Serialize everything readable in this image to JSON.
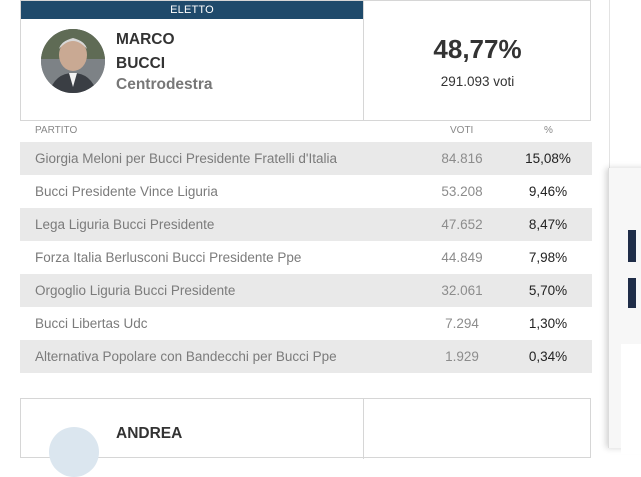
{
  "winner": {
    "badge": "ELETTO",
    "first_name": "MARCO",
    "last_name": "BUCCI",
    "coalition": "Centrodestra",
    "percentage": "48,77%",
    "votes": "291.093 voti"
  },
  "table": {
    "headers": {
      "party": "PARTITO",
      "votes": "VOTI",
      "pct": "%"
    },
    "rows": [
      {
        "party": "Giorgia Meloni per Bucci Presidente Fratelli d'Italia",
        "votes": "84.816",
        "pct": "15,08%"
      },
      {
        "party": "Bucci Presidente Vince Liguria",
        "votes": "53.208",
        "pct": "9,46%"
      },
      {
        "party": "Lega Liguria Bucci Presidente",
        "votes": "47.652",
        "pct": "8,47%"
      },
      {
        "party": "Forza Italia Berlusconi Bucci Presidente Ppe",
        "votes": "44.849",
        "pct": "7,98%"
      },
      {
        "party": "Orgoglio Liguria Bucci Presidente",
        "votes": "32.061",
        "pct": "5,70%"
      },
      {
        "party": "Bucci Libertas Udc",
        "votes": "7.294",
        "pct": "1,30%"
      },
      {
        "party": "Alternativa Popolare con Bandecchi per Bucci Ppe",
        "votes": "1.929",
        "pct": "0,34%"
      }
    ]
  },
  "next_candidate": {
    "first_name": "ANDREA"
  },
  "colors": {
    "badge": "#1f4a6b",
    "row_alt": "#e9e9e9"
  }
}
